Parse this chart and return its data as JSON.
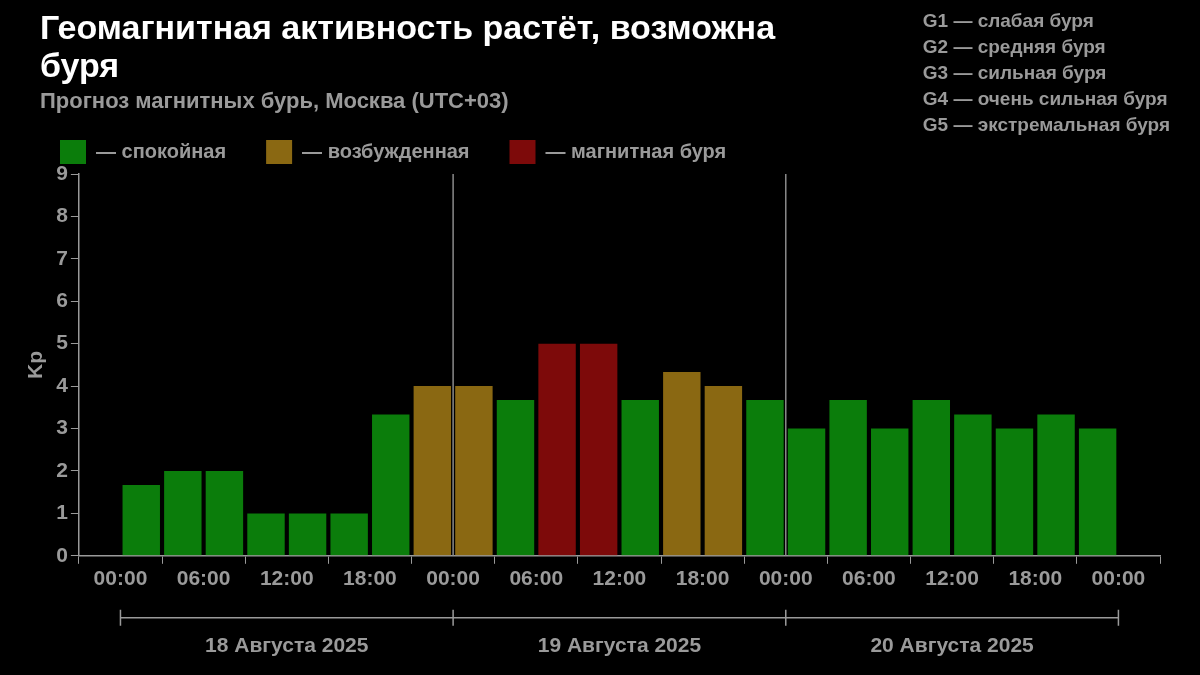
{
  "chart_data": {
    "type": "bar",
    "title": "Геомагнитная активность растёт, возможна буря",
    "subtitle": "Прогноз магнитных бурь, Москва (UTC+03)",
    "ylabel": "Kp",
    "x": [
      "2025-08-18T01:30",
      "2025-08-18T04:30",
      "2025-08-18T07:30",
      "2025-08-18T10:30",
      "2025-08-18T13:30",
      "2025-08-18T16:30",
      "2025-08-18T19:30",
      "2025-08-18T22:30",
      "2025-08-19T01:30",
      "2025-08-19T04:30",
      "2025-08-19T07:30",
      "2025-08-19T10:30",
      "2025-08-19T13:30",
      "2025-08-19T16:30",
      "2025-08-19T19:30",
      "2025-08-19T22:30",
      "2025-08-20T01:30",
      "2025-08-20T04:30",
      "2025-08-20T07:30",
      "2025-08-20T10:30",
      "2025-08-20T13:30",
      "2025-08-20T16:30",
      "2025-08-20T19:30",
      "2025-08-20T22:30"
    ],
    "series": [
      {
        "name": "— спокойная",
        "color": "#0b7d0b",
        "values": [
          1.67,
          2,
          2,
          1,
          1,
          1,
          3.33,
          null,
          null,
          3.67,
          null,
          null,
          3.67,
          null,
          null,
          3.67,
          3,
          3.67,
          3,
          3.67,
          3.33,
          3,
          3.33,
          3
        ]
      },
      {
        "name": "— возбужденная",
        "color": "#8a6812",
        "values": [
          null,
          null,
          null,
          null,
          null,
          null,
          null,
          4,
          4,
          null,
          null,
          null,
          null,
          4.33,
          4,
          null,
          null,
          null,
          null,
          null,
          null,
          null,
          null,
          null
        ]
      },
      {
        "name": "— магнитная буря",
        "color": "#7d0a0a",
        "values": [
          null,
          null,
          null,
          null,
          null,
          null,
          null,
          null,
          null,
          null,
          5,
          5,
          null,
          null,
          null,
          null,
          null,
          null,
          null,
          null,
          null,
          null,
          null,
          null
        ]
      }
    ],
    "xlim": [
      "2025-08-18T00:00",
      "2025-08-21T00:00"
    ],
    "xticks": [
      {
        "value": "2025-08-18T00:00",
        "label": "00:00"
      },
      {
        "value": "2025-08-18T06:00",
        "label": "06:00"
      },
      {
        "value": "2025-08-18T12:00",
        "label": "12:00"
      },
      {
        "value": "2025-08-18T18:00",
        "label": "18:00"
      },
      {
        "value": "2025-08-19T00:00",
        "label": "00:00"
      },
      {
        "value": "2025-08-19T06:00",
        "label": "06:00"
      },
      {
        "value": "2025-08-19T12:00",
        "label": "12:00"
      },
      {
        "value": "2025-08-19T18:00",
        "label": "18:00"
      },
      {
        "value": "2025-08-20T00:00",
        "label": "00:00"
      },
      {
        "value": "2025-08-20T06:00",
        "label": "06:00"
      },
      {
        "value": "2025-08-20T12:00",
        "label": "12:00"
      },
      {
        "value": "2025-08-20T18:00",
        "label": "18:00"
      },
      {
        "value": "2025-08-21T00:00",
        "label": "00:00"
      }
    ],
    "ylim": [
      0,
      9
    ],
    "yticks": [
      0,
      1,
      2,
      3,
      4,
      5,
      6,
      7,
      8,
      9
    ],
    "ref_lines": [
      {
        "axis": "x",
        "value": "2025-08-19T00:00",
        "color": "#8a8a8a"
      },
      {
        "axis": "x",
        "value": "2025-08-20T00:00",
        "color": "#8a8a8a"
      }
    ],
    "annotations": [
      "18 Августа 2025",
      "19 Августа 2025",
      "20 Августа 2025",
      "G1 — слабая буря",
      "G2 — средняя буря",
      "G3 — сильная буря",
      "G4 — очень сильная буря",
      "G5 — экстремальная буря"
    ],
    "grid": false,
    "legend": "top left"
  }
}
